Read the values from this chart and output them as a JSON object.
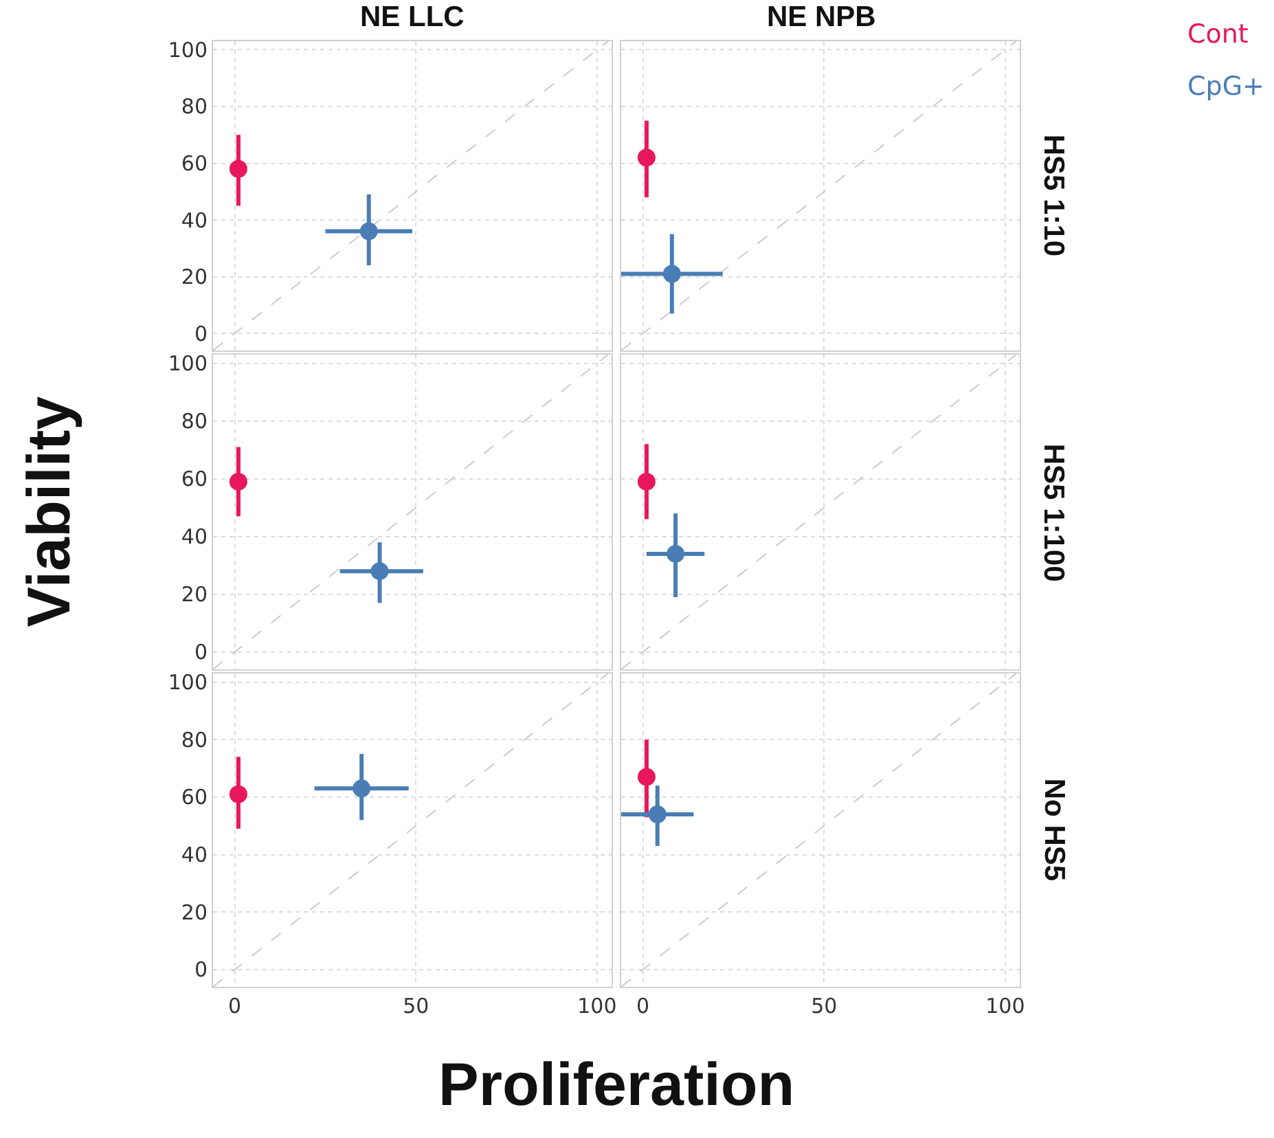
{
  "chart_data": [
    {
      "type": "scatter",
      "title": "NE LLC",
      "xlim": [
        -6,
        104
      ],
      "ylim": [
        -6,
        103
      ],
      "xticks": [
        0,
        50,
        100
      ],
      "yticks": [
        0,
        20,
        40,
        60,
        80,
        100
      ],
      "grid": true,
      "marker": "circle",
      "tick_labels": "y",
      "series": [
        {
          "color": "#e8175d",
          "x": [
            1
          ],
          "values": [
            58
          ],
          "errors": [
            [
              45,
              70
            ]
          ]
        },
        {
          "color": "#4a7db5",
          "x": [
            37
          ],
          "values": [
            36
          ],
          "errors": [
            [
              24,
              49
            ]
          ],
          "xerrors": [
            [
              25,
              49
            ]
          ]
        },
        {
          "type": "line",
          "marker": "none",
          "color": "#cccccc",
          "line_style": "dashed",
          "x": [
            -6,
            103
          ],
          "values": [
            -6,
            103
          ]
        }
      ]
    },
    {
      "type": "scatter",
      "title": "NE NPB",
      "xlim": [
        -6,
        104
      ],
      "ylim": [
        -6,
        103
      ],
      "xticks": [
        0,
        50,
        100
      ],
      "yticks": [
        0,
        20,
        40,
        60,
        80,
        100
      ],
      "grid": true,
      "marker": "circle",
      "tick_labels": false,
      "legend": "top right",
      "annotations": [
        "HS5 1:10"
      ],
      "series": [
        {
          "name": "Cont",
          "color": "#e8175d",
          "x": [
            1
          ],
          "values": [
            62
          ],
          "errors": [
            [
              48,
              75
            ]
          ]
        },
        {
          "name": "CpG+",
          "color": "#4a7db5",
          "x": [
            8
          ],
          "values": [
            21
          ],
          "errors": [
            [
              7,
              35
            ]
          ],
          "xerrors": [
            [
              -6,
              22
            ]
          ]
        },
        {
          "type": "line",
          "marker": "none",
          "color": "#cccccc",
          "line_style": "dashed",
          "x": [
            -6,
            103
          ],
          "values": [
            -6,
            103
          ]
        }
      ]
    },
    {
      "type": "scatter",
      "ylabel": "Viability",
      "xlim": [
        -6,
        104
      ],
      "ylim": [
        -6,
        103
      ],
      "xticks": [
        0,
        50,
        100
      ],
      "yticks": [
        0,
        20,
        40,
        60,
        80,
        100
      ],
      "grid": true,
      "marker": "circle",
      "tick_labels": "y",
      "series": [
        {
          "color": "#e8175d",
          "x": [
            1
          ],
          "values": [
            59
          ],
          "errors": [
            [
              47,
              71
            ]
          ]
        },
        {
          "color": "#4a7db5",
          "x": [
            40
          ],
          "values": [
            28
          ],
          "errors": [
            [
              17,
              38
            ]
          ],
          "xerrors": [
            [
              29,
              52
            ]
          ]
        },
        {
          "type": "line",
          "marker": "none",
          "color": "#cccccc",
          "line_style": "dashed",
          "x": [
            -6,
            103
          ],
          "values": [
            -6,
            103
          ]
        }
      ]
    },
    {
      "type": "scatter",
      "xlim": [
        -6,
        104
      ],
      "ylim": [
        -6,
        103
      ],
      "xticks": [
        0,
        50,
        100
      ],
      "yticks": [
        0,
        20,
        40,
        60,
        80,
        100
      ],
      "grid": true,
      "marker": "circle",
      "tick_labels": false,
      "annotations": [
        "HS5 1:100"
      ],
      "series": [
        {
          "color": "#e8175d",
          "x": [
            1
          ],
          "values": [
            59
          ],
          "errors": [
            [
              46,
              72
            ]
          ]
        },
        {
          "color": "#4a7db5",
          "x": [
            9
          ],
          "values": [
            34
          ],
          "errors": [
            [
              19,
              48
            ]
          ],
          "xerrors": [
            [
              1,
              17
            ]
          ]
        },
        {
          "type": "line",
          "marker": "none",
          "color": "#cccccc",
          "line_style": "dashed",
          "x": [
            -6,
            103
          ],
          "values": [
            -6,
            103
          ]
        }
      ]
    },
    {
      "type": "scatter",
      "xlabel": "Proliferation",
      "xlim": [
        -6,
        104
      ],
      "ylim": [
        -6,
        103
      ],
      "xticks": [
        0,
        50,
        100
      ],
      "yticks": [
        0,
        20,
        40,
        60,
        80,
        100
      ],
      "grid": true,
      "marker": "circle",
      "series": [
        {
          "color": "#e8175d",
          "x": [
            1
          ],
          "values": [
            61
          ],
          "errors": [
            [
              49,
              74
            ]
          ]
        },
        {
          "color": "#4a7db5",
          "x": [
            35
          ],
          "values": [
            63
          ],
          "errors": [
            [
              52,
              75
            ]
          ],
          "xerrors": [
            [
              22,
              48
            ]
          ]
        },
        {
          "type": "line",
          "marker": "none",
          "color": "#cccccc",
          "line_style": "dashed",
          "x": [
            -6,
            103
          ],
          "values": [
            -6,
            103
          ]
        }
      ]
    },
    {
      "type": "scatter",
      "xlim": [
        -6,
        104
      ],
      "ylim": [
        -6,
        103
      ],
      "xticks": [
        0,
        50,
        100
      ],
      "yticks": [
        0,
        20,
        40,
        60,
        80,
        100
      ],
      "grid": true,
      "marker": "circle",
      "tick_labels": "x",
      "annotations": [
        "No HS5"
      ],
      "series": [
        {
          "color": "#e8175d",
          "x": [
            1
          ],
          "values": [
            67
          ],
          "errors": [
            [
              53,
              80
            ]
          ]
        },
        {
          "color": "#4a7db5",
          "x": [
            4
          ],
          "values": [
            54
          ],
          "errors": [
            [
              43,
              64
            ]
          ],
          "xerrors": [
            [
              -6,
              14
            ]
          ]
        },
        {
          "type": "line",
          "marker": "none",
          "color": "#cccccc",
          "line_style": "dashed",
          "x": [
            -6,
            103
          ],
          "values": [
            -6,
            103
          ]
        }
      ]
    }
  ]
}
